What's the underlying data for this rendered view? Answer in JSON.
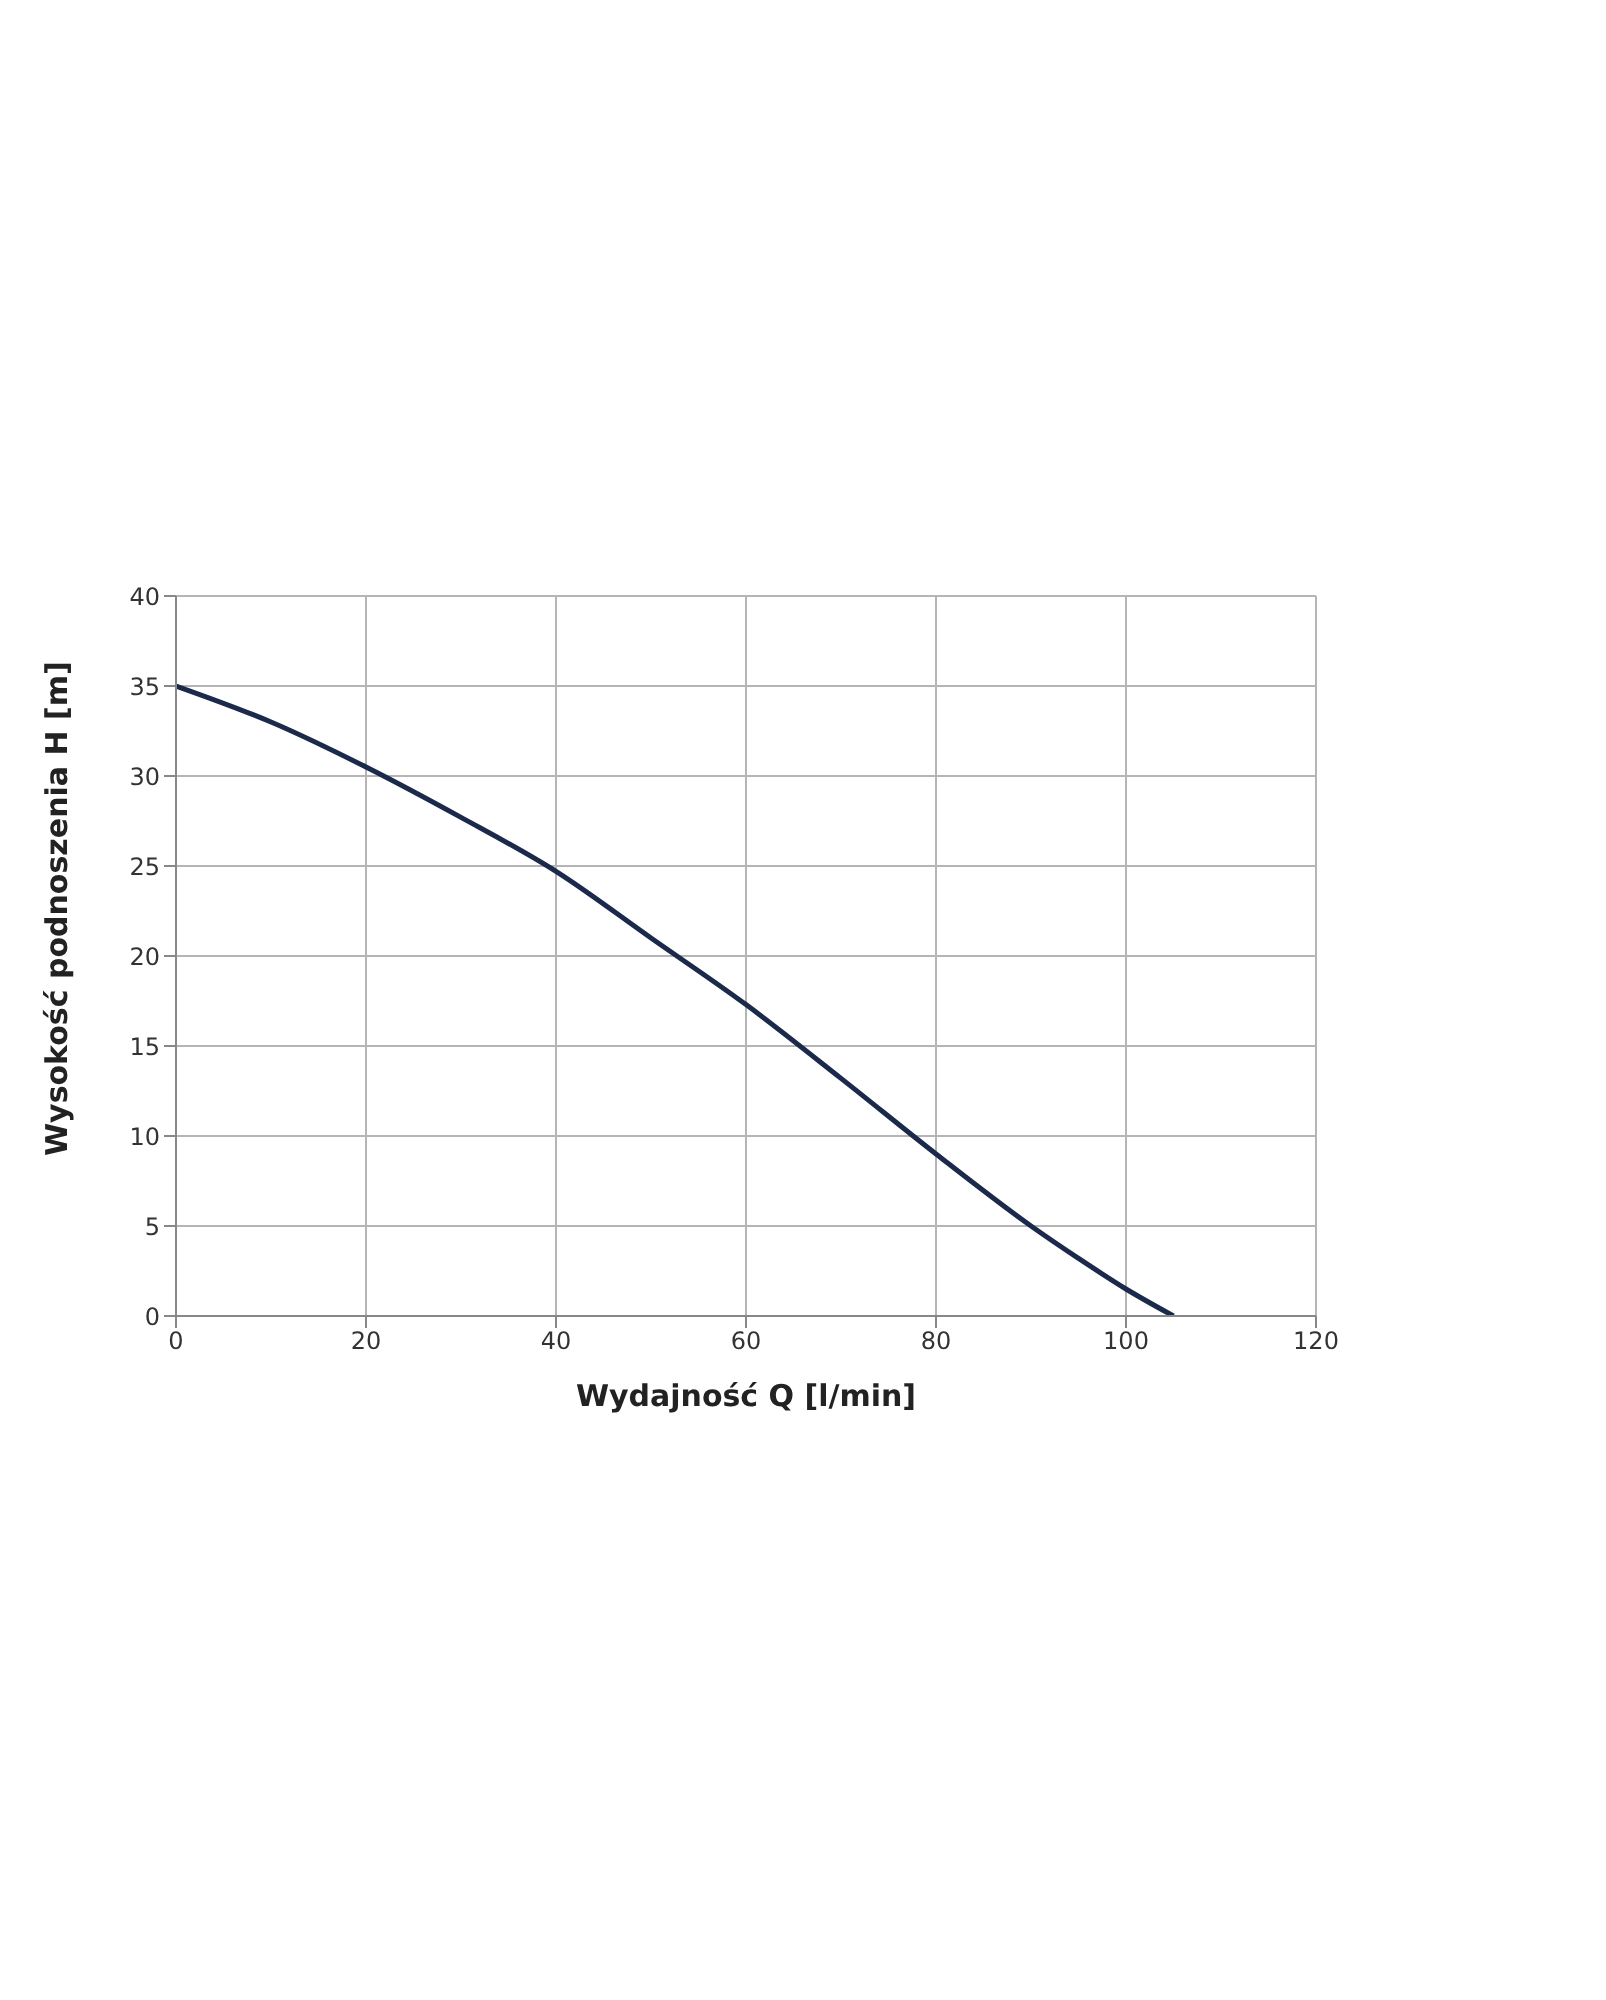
{
  "chart_data": {
    "type": "line",
    "xlabel": "Wydajność Q [l/min]",
    "ylabel": "Wysokość podnoszenia H [m]",
    "x": [
      0,
      10,
      20,
      30,
      40,
      50,
      60,
      70,
      80,
      90,
      95,
      100,
      105
    ],
    "series": [
      {
        "color": "#1b2a4a",
        "values": [
          35,
          33,
          30.5,
          27.7,
          24.7,
          21,
          17.3,
          13.2,
          9,
          5,
          3.2,
          1.5,
          0
        ]
      }
    ],
    "xlim": [
      0,
      120
    ],
    "xticks": [
      0,
      20,
      40,
      60,
      80,
      100,
      120
    ],
    "ylim": [
      0,
      40
    ],
    "yticks": [
      0,
      5,
      10,
      15,
      20,
      25,
      30,
      35,
      40
    ],
    "grid": true,
    "marker": "none",
    "line_style": "solid"
  }
}
